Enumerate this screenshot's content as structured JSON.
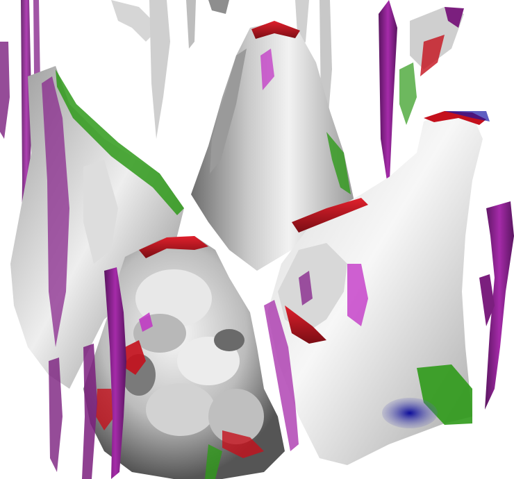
{
  "image": {
    "kind": "3d-isosurface-render",
    "background": "#ffffff",
    "palette": {
      "surface_light": "#f4f4f4",
      "surface_mid": "#bdbdbd",
      "surface_dark": "#5a5a5a",
      "ridge_red": "#c4101c",
      "edge_green": "#2f9a1a",
      "filament_purple": "#7b1f7e",
      "magenta": "#c02cc4",
      "shadow_blue": "#1a1aa6"
    }
  }
}
